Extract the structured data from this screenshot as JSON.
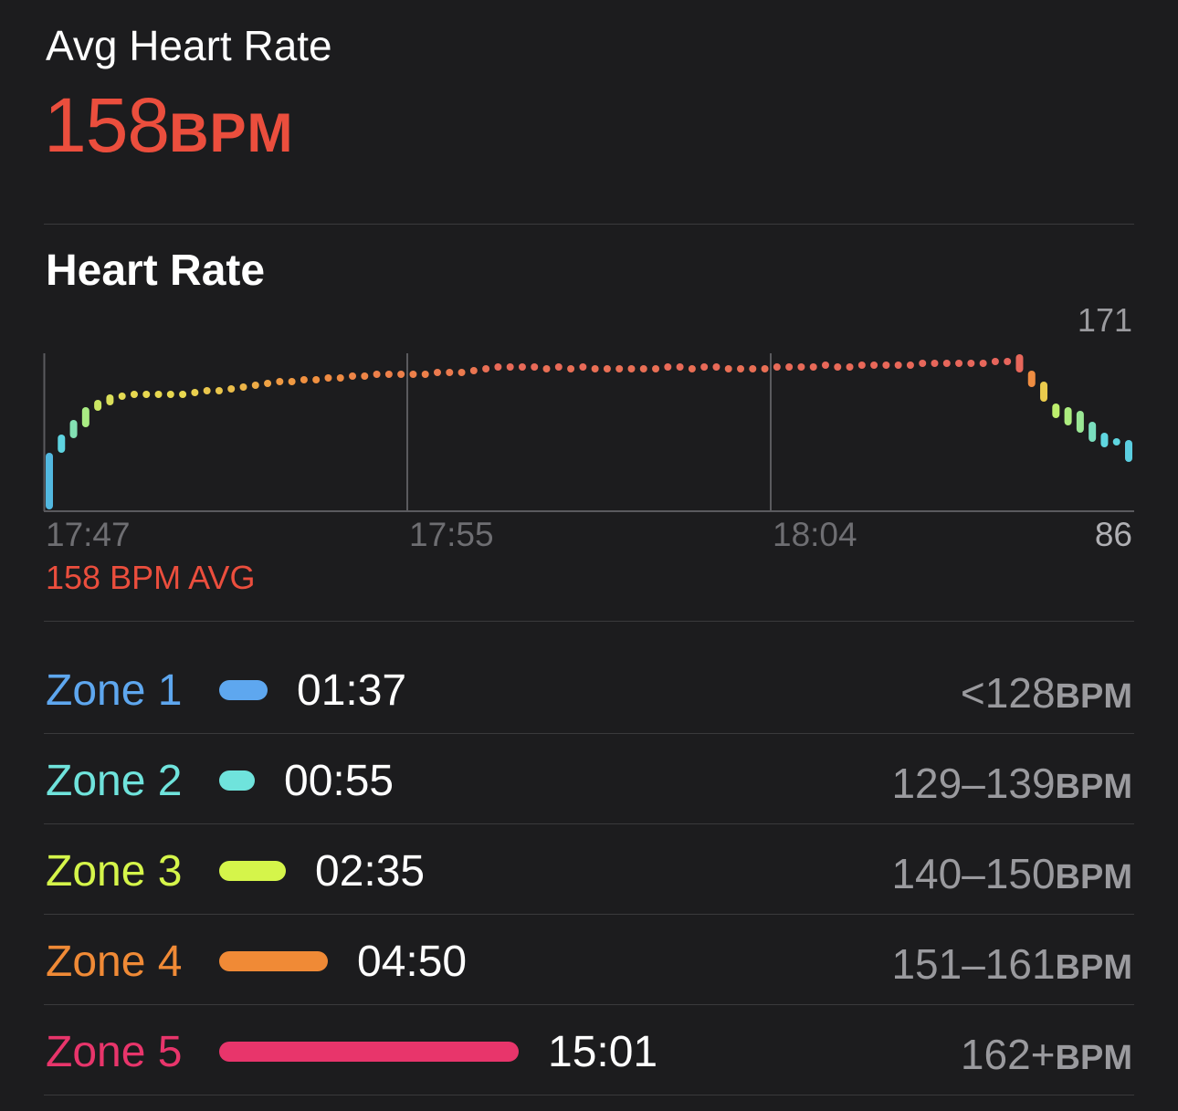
{
  "summary": {
    "title": "Avg Heart Rate",
    "value": "158",
    "unit": "BPM"
  },
  "chart_section": {
    "title": "Heart Rate",
    "avg_label": "158 BPM AVG"
  },
  "chart_data": {
    "type": "scatter",
    "title": "Heart Rate",
    "ylim": [
      86,
      171
    ],
    "y_max_label": "171",
    "y_min_label": "86",
    "x_tick_labels": [
      "17:47",
      "17:55",
      "18:04"
    ],
    "average": 158,
    "points_bpm_range": [
      [
        89,
        116
      ],
      [
        120,
        126
      ],
      [
        128,
        134
      ],
      [
        134,
        141
      ],
      [
        143,
        145
      ],
      [
        146,
        148
      ],
      [
        149,
        149
      ],
      [
        150,
        150
      ],
      [
        150,
        150
      ],
      [
        150,
        150
      ],
      [
        150,
        150
      ],
      [
        150,
        150
      ],
      [
        151,
        151
      ],
      [
        152,
        152
      ],
      [
        152,
        152
      ],
      [
        153,
        153
      ],
      [
        154,
        154
      ],
      [
        155,
        155
      ],
      [
        156,
        156
      ],
      [
        157,
        157
      ],
      [
        157,
        157
      ],
      [
        158,
        158
      ],
      [
        158,
        158
      ],
      [
        159,
        159
      ],
      [
        159,
        159
      ],
      [
        160,
        160
      ],
      [
        160,
        160
      ],
      [
        161,
        161
      ],
      [
        161,
        161
      ],
      [
        161,
        161
      ],
      [
        161,
        161
      ],
      [
        161,
        161
      ],
      [
        162,
        162
      ],
      [
        162,
        162
      ],
      [
        162,
        162
      ],
      [
        163,
        163
      ],
      [
        164,
        164
      ],
      [
        165,
        165
      ],
      [
        165,
        165
      ],
      [
        165,
        165
      ],
      [
        165,
        165
      ],
      [
        164,
        164
      ],
      [
        165,
        165
      ],
      [
        164,
        164
      ],
      [
        165,
        165
      ],
      [
        164,
        164
      ],
      [
        164,
        164
      ],
      [
        164,
        164
      ],
      [
        164,
        164
      ],
      [
        164,
        164
      ],
      [
        164,
        164
      ],
      [
        165,
        165
      ],
      [
        165,
        165
      ],
      [
        164,
        164
      ],
      [
        165,
        165
      ],
      [
        165,
        165
      ],
      [
        164,
        164
      ],
      [
        164,
        164
      ],
      [
        164,
        164
      ],
      [
        164,
        164
      ],
      [
        165,
        165
      ],
      [
        165,
        165
      ],
      [
        165,
        165
      ],
      [
        165,
        165
      ],
      [
        166,
        166
      ],
      [
        165,
        165
      ],
      [
        165,
        165
      ],
      [
        166,
        166
      ],
      [
        166,
        166
      ],
      [
        166,
        166
      ],
      [
        166,
        166
      ],
      [
        166,
        166
      ],
      [
        167,
        167
      ],
      [
        167,
        167
      ],
      [
        167,
        167
      ],
      [
        167,
        167
      ],
      [
        167,
        167
      ],
      [
        167,
        167
      ],
      [
        168,
        168
      ],
      [
        168,
        168
      ],
      [
        164,
        170
      ],
      [
        156,
        161
      ],
      [
        148,
        155
      ],
      [
        139,
        143
      ],
      [
        135,
        141
      ],
      [
        131,
        139
      ],
      [
        126,
        133
      ],
      [
        123,
        127
      ],
      [
        124,
        124
      ],
      [
        115,
        123
      ]
    ]
  },
  "zones": [
    {
      "name": "Zone 1",
      "time": "01:37",
      "seconds": 97,
      "range": "<128",
      "unit": "BPM",
      "color": "#5ea7ef"
    },
    {
      "name": "Zone 2",
      "time": "00:55",
      "seconds": 55,
      "range": "129–139",
      "unit": "BPM",
      "color": "#6fe3dc"
    },
    {
      "name": "Zone 3",
      "time": "02:35",
      "seconds": 155,
      "range": "140–150",
      "unit": "BPM",
      "color": "#d5f54a"
    },
    {
      "name": "Zone 4",
      "time": "04:50",
      "seconds": 290,
      "range": "151–161",
      "unit": "BPM",
      "color": "#f08a36"
    },
    {
      "name": "Zone 5",
      "time": "15:01",
      "seconds": 901,
      "range": "162+",
      "unit": "BPM",
      "color": "#e8356b"
    }
  ]
}
